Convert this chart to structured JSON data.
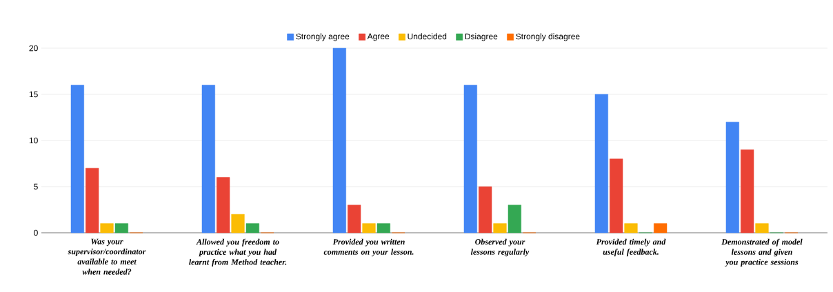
{
  "chart_data": {
    "type": "bar",
    "categories": [
      "Was your supervisor/coordinator available to meet when needed?",
      "Allowed you freedom to practice what you had learnt from Method teacher.",
      "Provided you written comments on your lesson.",
      "Observed your lessons regularly",
      "Provided timely and useful feedback.",
      "Demonstrated of model lessons and given you practice sessions"
    ],
    "series": [
      {
        "name": "Strongly agree",
        "color": "#4285f4",
        "values": [
          16,
          16,
          20,
          16,
          15,
          12
        ]
      },
      {
        "name": "Agree",
        "color": "#ea4335",
        "values": [
          7,
          6,
          3,
          5,
          8,
          9
        ]
      },
      {
        "name": "Undecided",
        "color": "#fbbc04",
        "values": [
          1,
          2,
          1,
          1,
          1,
          1
        ]
      },
      {
        "name": "Dsiagree",
        "color": "#34a853",
        "values": [
          1,
          1,
          1,
          3,
          0,
          0
        ]
      },
      {
        "name": "Strongly disagree",
        "color": "#ff6d01",
        "values": [
          0,
          0,
          0,
          0,
          1,
          0
        ]
      }
    ],
    "ylim": [
      0,
      20
    ],
    "yticks": [
      0,
      5,
      10,
      15,
      20
    ],
    "grid": "y",
    "legend": "top"
  }
}
